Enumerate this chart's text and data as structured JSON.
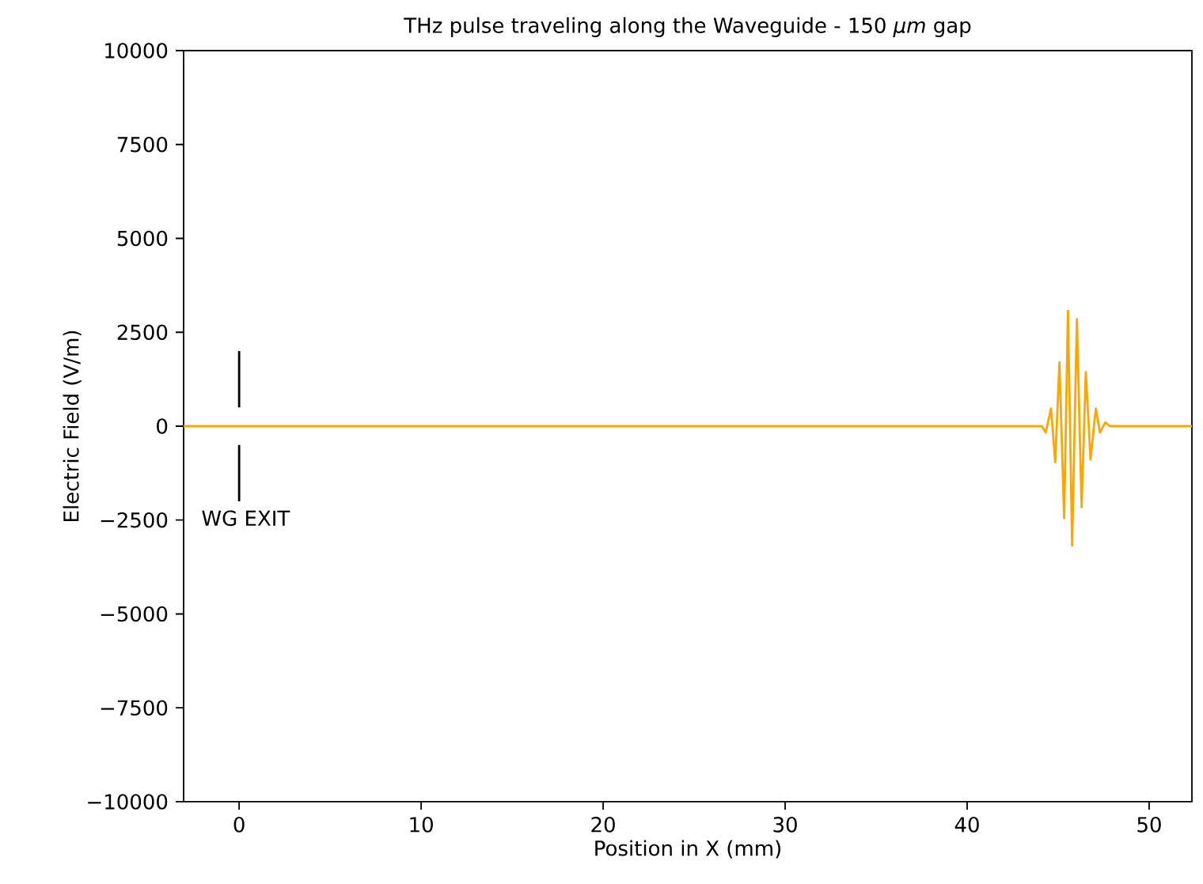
{
  "chart_data": {
    "type": "line",
    "title": "THz pulse traveling along the Waveguide - 150 *μm* gap",
    "xlabel": "Position in X (mm)",
    "ylabel": "Electric Field (V/m)",
    "xlim": [
      -3.05,
      52.35
    ],
    "ylim": [
      -10000,
      10000
    ],
    "xticks": [
      0,
      10,
      20,
      30,
      40,
      50
    ],
    "yticks": [
      {
        "value": -10000,
        "label": "−10000"
      },
      {
        "value": -7500,
        "label": "−7500"
      },
      {
        "value": -5000,
        "label": "−5000"
      },
      {
        "value": -2500,
        "label": "−2500"
      },
      0,
      2500,
      5000,
      7500,
      10000
    ],
    "series": [
      {
        "color": "#ffa500",
        "x": [
          -3.05,
          44.1,
          44.32,
          44.61,
          44.84,
          45.07,
          45.33,
          45.54,
          45.77,
          46.03,
          46.29,
          46.52,
          46.78,
          47.07,
          47.3,
          47.59,
          47.85,
          52.35
        ],
        "values": [
          0,
          0,
          -170,
          470,
          -960,
          1700,
          -2450,
          3070,
          -3180,
          2850,
          -2160,
          1440,
          -890,
          470,
          -170,
          100,
          0,
          0
        ]
      },
      {
        "color": "#000000",
        "x": [
          0,
          0
        ],
        "values": [
          2000,
          500
        ]
      },
      {
        "color": "#000000",
        "x": [
          0,
          0
        ],
        "values": [
          -500,
          -2000
        ]
      }
    ],
    "annotations": [
      "WG EXIT"
    ]
  }
}
